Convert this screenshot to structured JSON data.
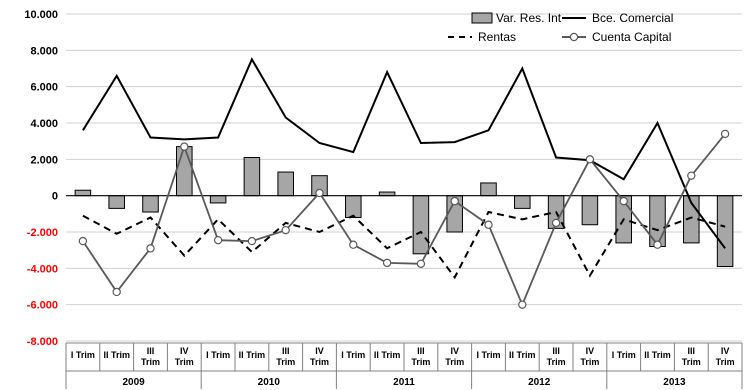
{
  "chart_data": {
    "type": "bar",
    "title": "",
    "xlabel": "",
    "ylabel": "",
    "ylim": [
      -8000,
      10000
    ],
    "yticks": [
      {
        "value": 10000,
        "label": "10.000"
      },
      {
        "value": 8000,
        "label": "8.000"
      },
      {
        "value": 6000,
        "label": "6.000"
      },
      {
        "value": 4000,
        "label": "4.000"
      },
      {
        "value": 2000,
        "label": "2.000"
      },
      {
        "value": 0,
        "label": "0"
      },
      {
        "value": -2000,
        "label": "-2.000"
      },
      {
        "value": -4000,
        "label": "-4.000"
      },
      {
        "value": -6000,
        "label": "-6.000"
      },
      {
        "value": -8000,
        "label": "-8.000"
      }
    ],
    "negative_tick_color": "#ff0000",
    "categories": [
      {
        "label": [
          "I Trim"
        ]
      },
      {
        "label": [
          "II Trim"
        ]
      },
      {
        "label": [
          "III",
          "Trim"
        ]
      },
      {
        "label": [
          "IV",
          "Trim"
        ]
      },
      {
        "label": [
          "I Trim"
        ]
      },
      {
        "label": [
          "II Trim"
        ]
      },
      {
        "label": [
          "III",
          "Trim"
        ]
      },
      {
        "label": [
          "IV",
          "Trim"
        ]
      },
      {
        "label": [
          "I Trim"
        ]
      },
      {
        "label": [
          "II Trim"
        ]
      },
      {
        "label": [
          "III",
          "Trim"
        ]
      },
      {
        "label": [
          "IV",
          "Trim"
        ]
      },
      {
        "label": [
          "I Trim"
        ]
      },
      {
        "label": [
          "II Trim"
        ]
      },
      {
        "label": [
          "III",
          "Trim"
        ]
      },
      {
        "label": [
          "IV",
          "Trim"
        ]
      },
      {
        "label": [
          "I Trim"
        ]
      },
      {
        "label": [
          "II Trim"
        ]
      },
      {
        "label": [
          "III",
          "Trim"
        ]
      },
      {
        "label": [
          "IV",
          "Trim"
        ]
      }
    ],
    "years": [
      "2009",
      "2010",
      "2011",
      "2012",
      "2013"
    ],
    "grid": true,
    "legend_position": "top-right",
    "series": [
      {
        "name": "Var. Res. Int",
        "kind": "bar",
        "color": "#a6a6a6",
        "values": [
          300,
          -700,
          -900,
          2700,
          -400,
          2100,
          1300,
          1100,
          -1200,
          200,
          -3200,
          -2000,
          700,
          -700,
          -1800,
          -1600,
          -2600,
          -2800,
          -2600,
          -3900
        ]
      },
      {
        "name": "Bce. Comercial",
        "kind": "line",
        "color": "#000000",
        "dash": "solid",
        "values": [
          3600,
          6600,
          3200,
          3100,
          3200,
          7500,
          4300,
          2900,
          2400,
          6800,
          2900,
          2950,
          3600,
          7000,
          2100,
          1950,
          900,
          4000,
          -400,
          -2900
        ]
      },
      {
        "name": "Rentas",
        "kind": "line",
        "color": "#000000",
        "dash": "dashed",
        "values": [
          -1100,
          -2100,
          -1200,
          -3300,
          -1300,
          -3100,
          -1500,
          -2000,
          -1100,
          -2900,
          -2000,
          -4500,
          -900,
          -1300,
          -900,
          -4400,
          -1300,
          -1900,
          -1200,
          -1700
        ]
      },
      {
        "name": "Cuenta Capital",
        "kind": "line",
        "color": "#595959",
        "dash": "solid",
        "marker": "circle",
        "values": [
          -2500,
          -5300,
          -2900,
          2700,
          -2450,
          -2500,
          -1900,
          150,
          -2700,
          -3700,
          -3750,
          -300,
          -1600,
          -6000,
          -1500,
          2000,
          -300,
          -2700,
          1100,
          3400
        ]
      }
    ]
  }
}
